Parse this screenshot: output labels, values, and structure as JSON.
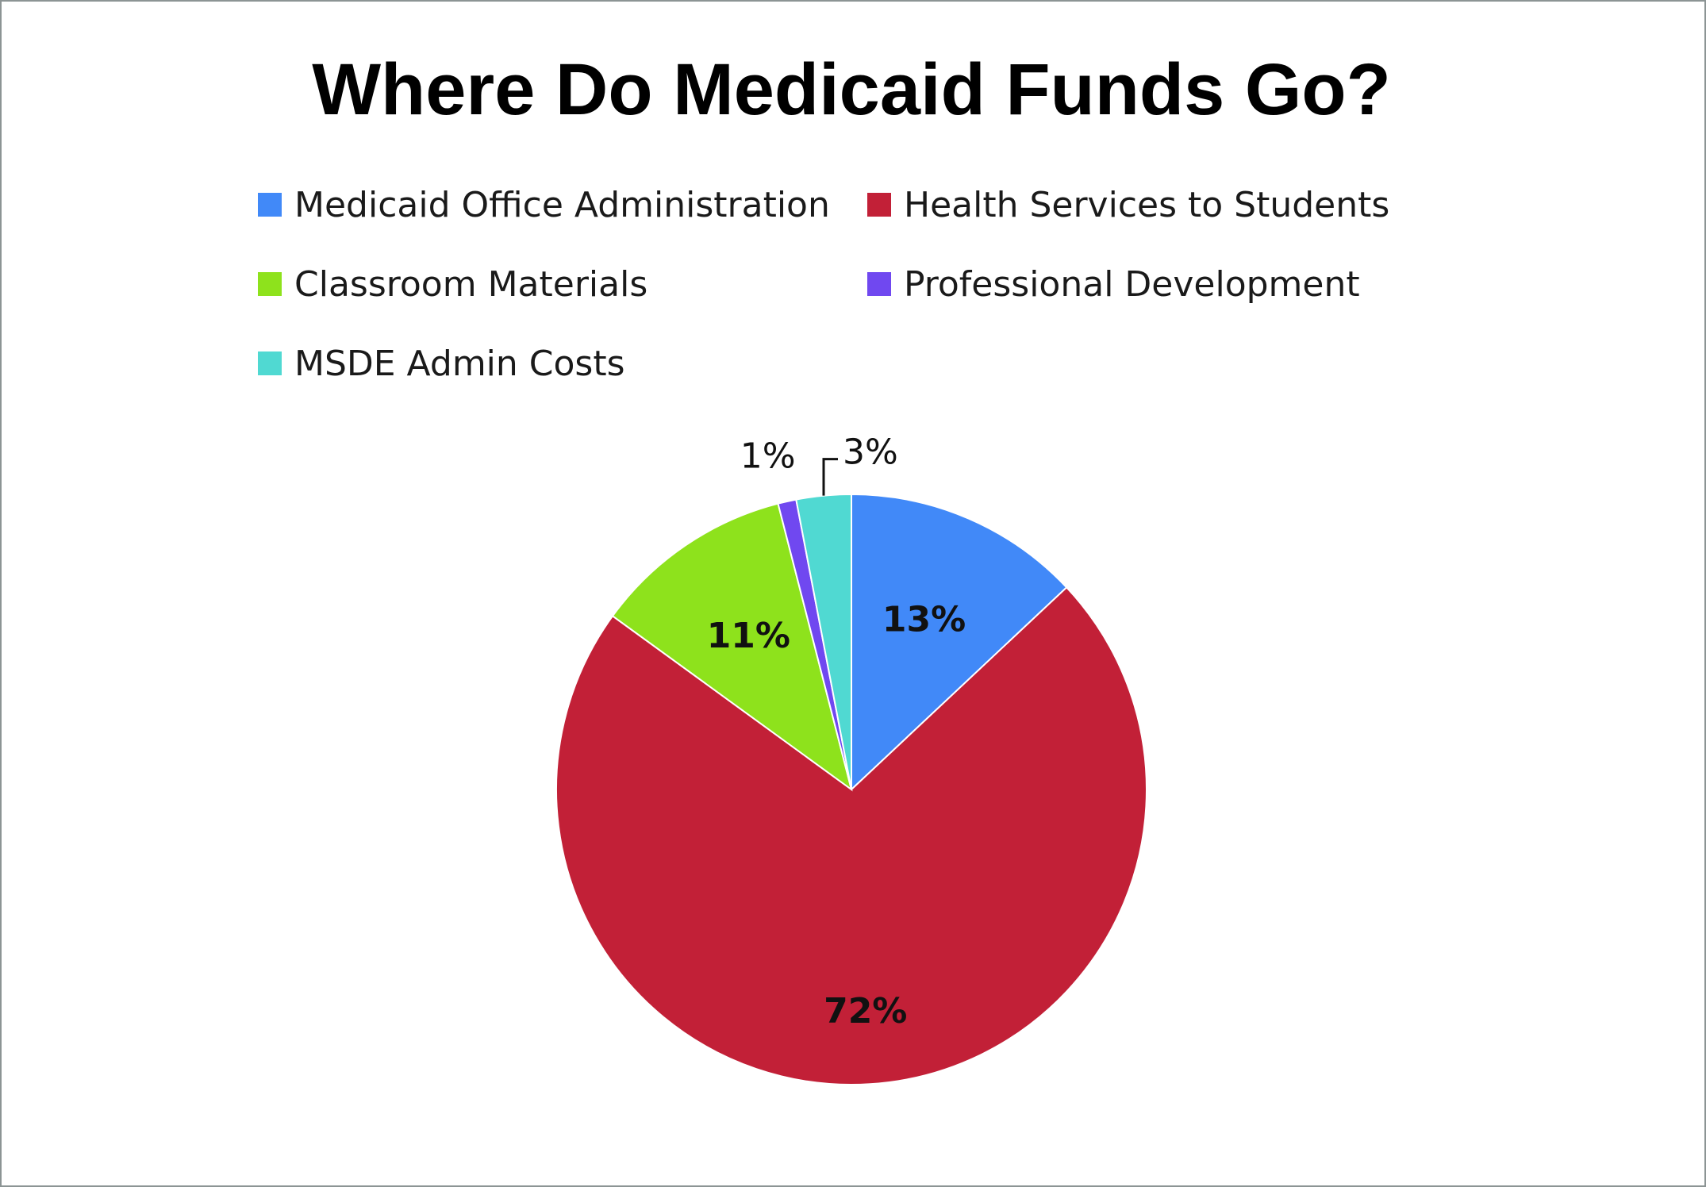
{
  "chart_data": {
    "type": "pie",
    "title": "Where Do Medicaid Funds Go?",
    "legend_position": "top",
    "slices": [
      {
        "label": "Medicaid Office Administration",
        "value": 13,
        "display": "13%",
        "color": "#4189f8"
      },
      {
        "label": "Health Services to Students",
        "value": 72,
        "display": "72%",
        "color": "#c22037"
      },
      {
        "label": "Classroom Materials",
        "value": 11,
        "display": "11%",
        "color": "#8ee21c"
      },
      {
        "label": "Professional Development",
        "value": 1,
        "display": "1%",
        "color": "#7048f0"
      },
      {
        "label": "MSDE Admin Costs",
        "value": 3,
        "display": "3%",
        "color": "#50d9d2"
      }
    ]
  }
}
